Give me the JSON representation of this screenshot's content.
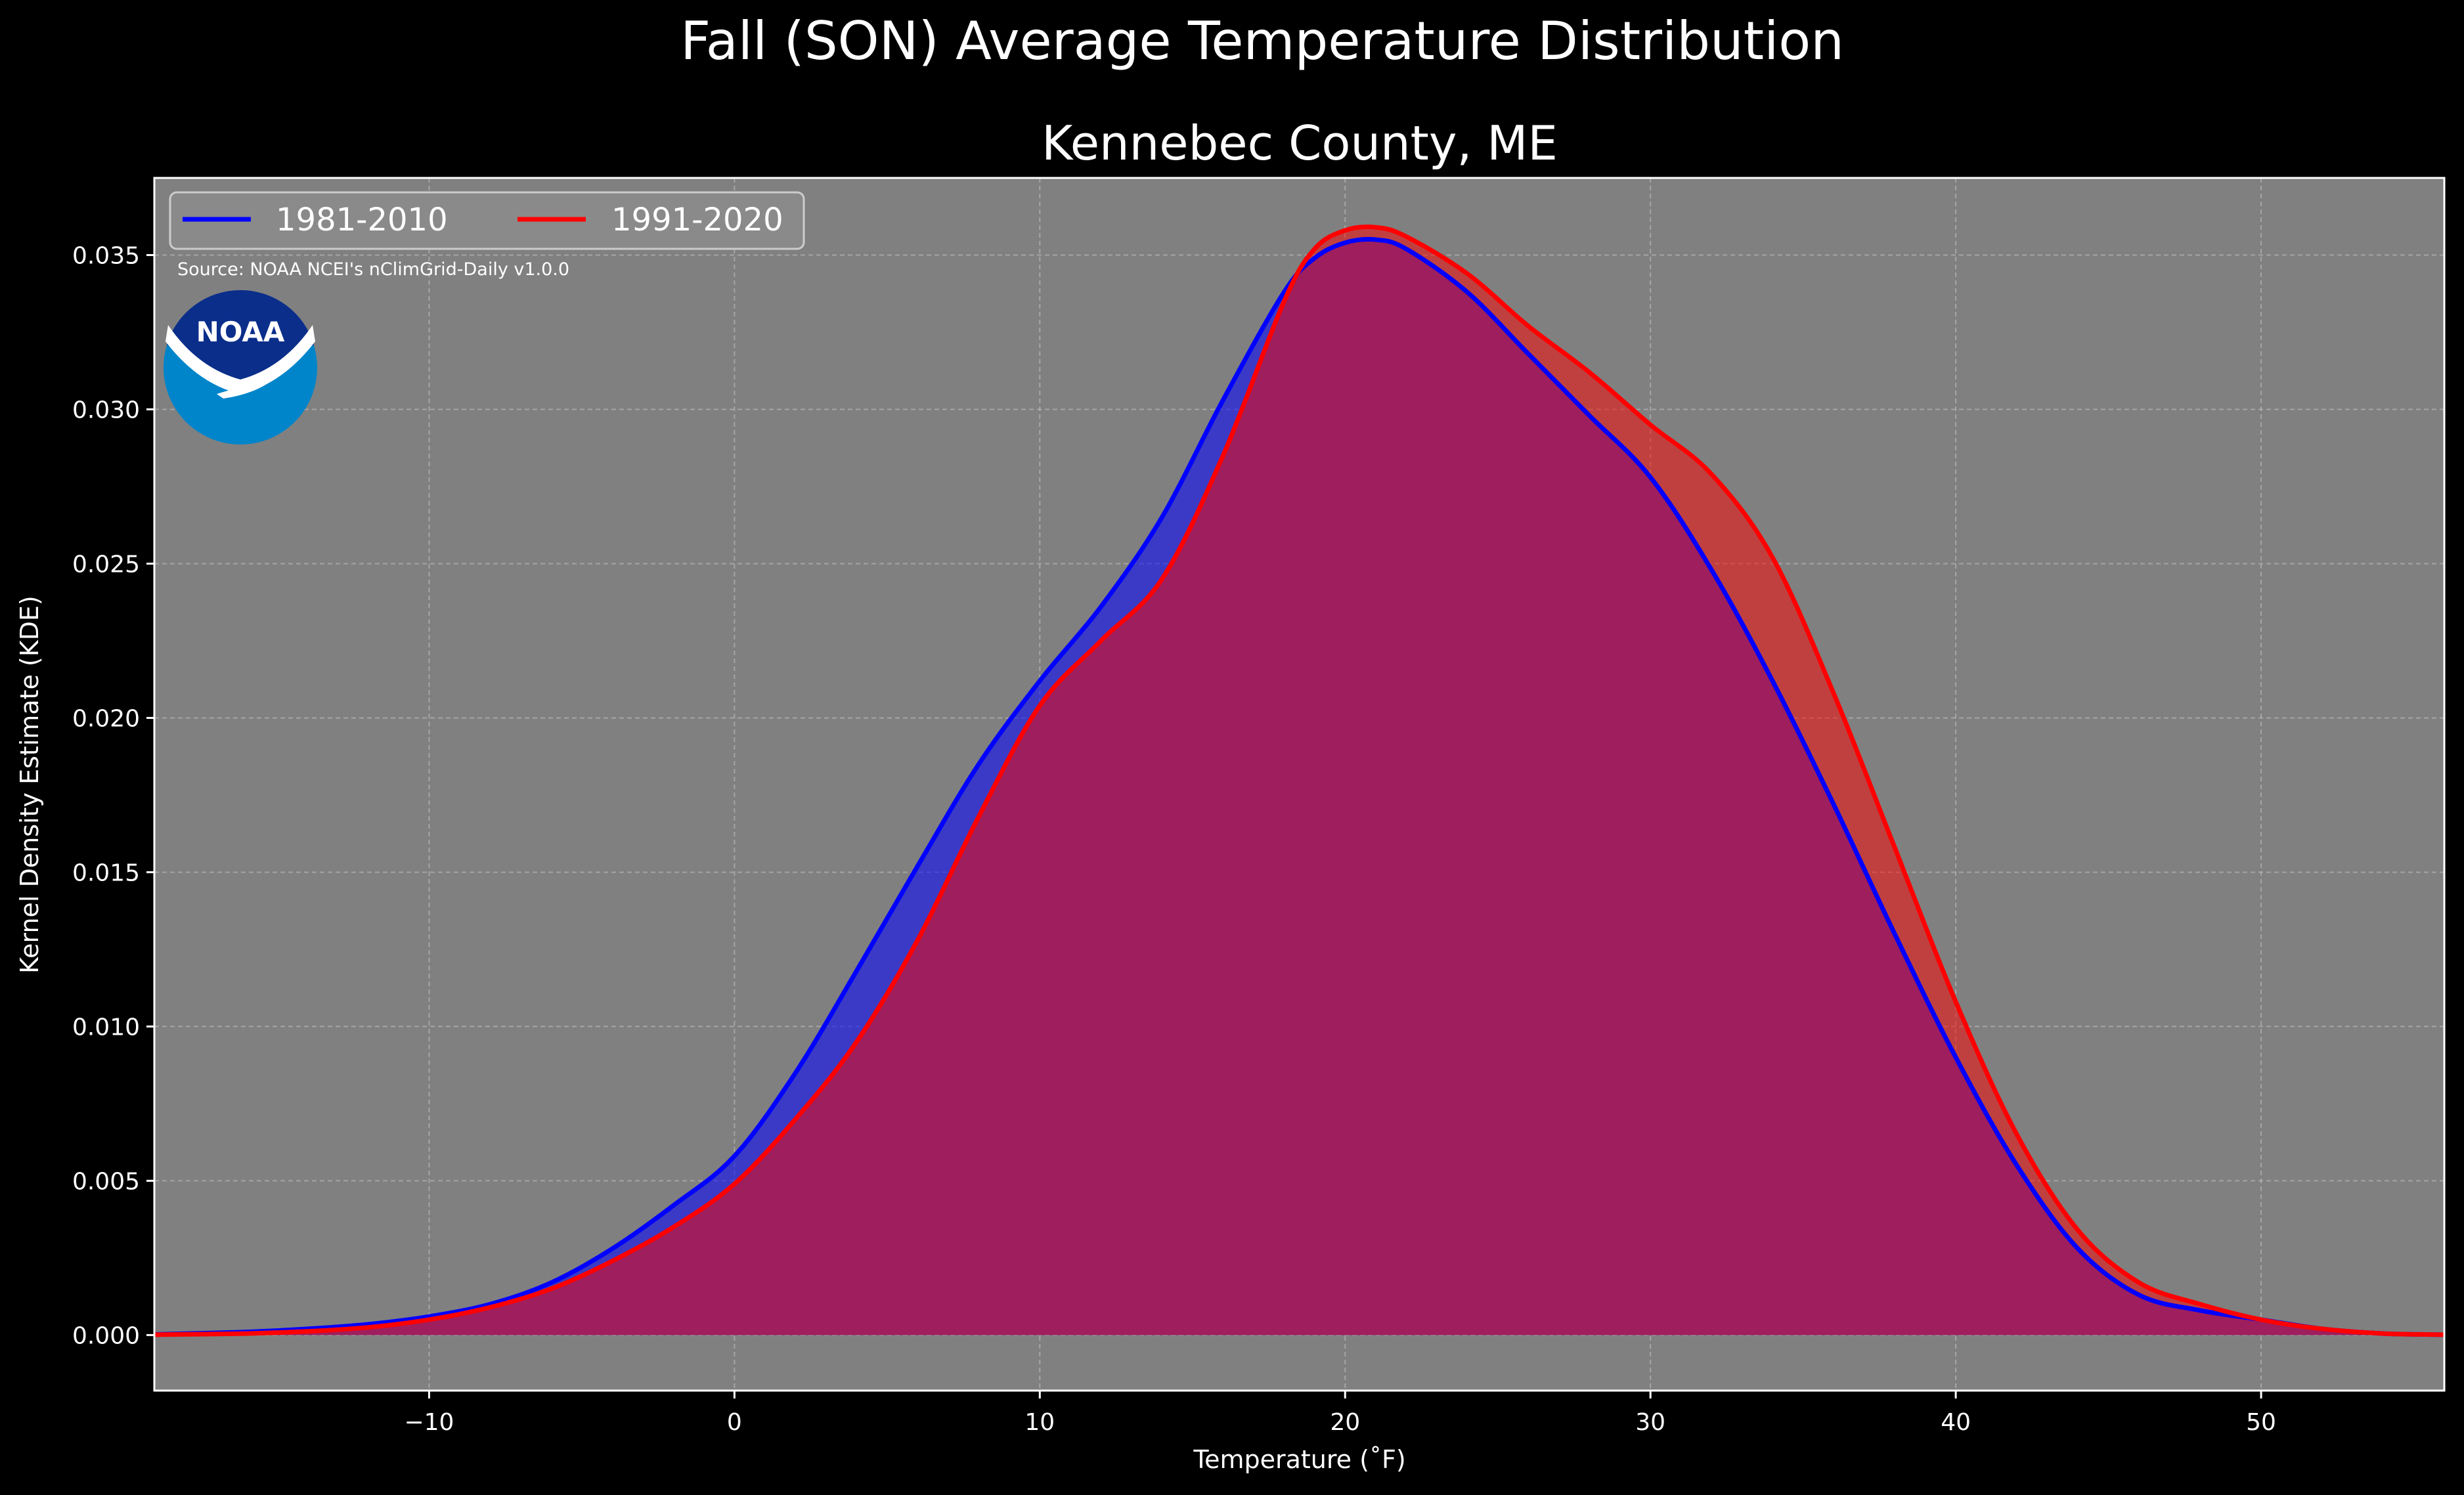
{
  "chart_data": {
    "type": "area",
    "title": "Fall (SON) Average Temperature Distribution",
    "subtitle": "Kennebec County, ME",
    "xlabel": "Temperature (˚F)",
    "ylabel": "Kernel Density Estimate (KDE)",
    "xlim": [
      -19,
      56
    ],
    "ylim": [
      -0.0018,
      0.0375
    ],
    "x_ticks": [
      -10,
      0,
      10,
      20,
      30,
      40,
      50
    ],
    "x_tick_labels": [
      "−10",
      "0",
      "10",
      "20",
      "30",
      "40",
      "50"
    ],
    "y_ticks": [
      0.0,
      0.005,
      0.01,
      0.015,
      0.02,
      0.025,
      0.03,
      0.035
    ],
    "y_tick_labels": [
      "0.000",
      "0.005",
      "0.010",
      "0.015",
      "0.020",
      "0.025",
      "0.030",
      "0.035"
    ],
    "grid": true,
    "legend_position": "top-left",
    "source_note": "Source: NOAA NCEI's nClimGrid-Daily v1.0.0",
    "logo_text": "NOAA",
    "colors": {
      "background": "#000000",
      "plot_background": "#808080",
      "series_1": "#0000ff",
      "series_2": "#ff0000",
      "overlap_fill": "#9e1e5e",
      "text": "#ffffff",
      "logo_dark": "#0a2e8a",
      "logo_light": "#0085ca"
    },
    "x": [
      -19,
      -16,
      -14,
      -12,
      -10,
      -8,
      -6,
      -4,
      -2,
      0,
      2,
      4,
      6,
      8,
      10,
      12,
      14,
      16,
      18,
      19,
      20,
      21,
      22,
      24,
      26,
      28,
      30,
      32,
      34,
      36,
      38,
      40,
      42,
      44,
      46,
      48,
      50,
      52,
      54,
      56
    ],
    "series": [
      {
        "name": "1981-2010",
        "color": "#0000ff",
        "values": [
          2e-05,
          0.0001,
          0.0002,
          0.00035,
          0.0006,
          0.001,
          0.0017,
          0.0028,
          0.0042,
          0.0058,
          0.0085,
          0.0118,
          0.0152,
          0.0185,
          0.0212,
          0.0236,
          0.0265,
          0.0303,
          0.0338,
          0.0349,
          0.0354,
          0.0355,
          0.0352,
          0.0338,
          0.0318,
          0.0298,
          0.0278,
          0.0248,
          0.0212,
          0.0172,
          0.013,
          0.009,
          0.0055,
          0.0028,
          0.0013,
          0.0008,
          0.0005,
          0.0002,
          5e-05,
          1e-05
        ]
      },
      {
        "name": "1991-2020",
        "color": "#ff0000",
        "values": [
          1e-05,
          5e-05,
          0.00012,
          0.00025,
          0.0005,
          0.0009,
          0.0015,
          0.0024,
          0.0035,
          0.0049,
          0.007,
          0.0095,
          0.0128,
          0.0168,
          0.0204,
          0.0225,
          0.0245,
          0.0285,
          0.0335,
          0.0352,
          0.0358,
          0.0359,
          0.0356,
          0.0344,
          0.0327,
          0.0312,
          0.0295,
          0.0279,
          0.0252,
          0.0208,
          0.0158,
          0.0108,
          0.0065,
          0.0034,
          0.0017,
          0.001,
          0.0005,
          0.0002,
          5e-05,
          1e-05
        ]
      }
    ]
  }
}
